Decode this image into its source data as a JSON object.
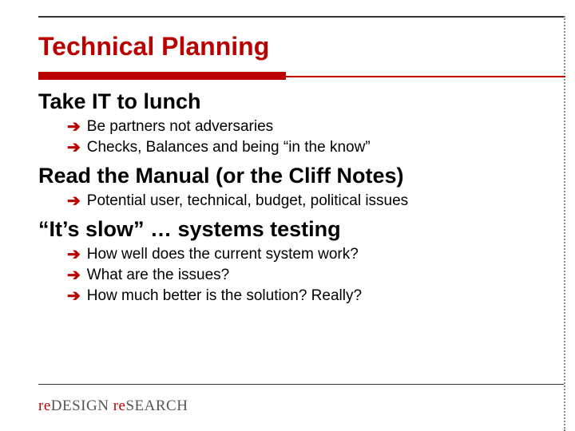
{
  "title": "Technical Planning",
  "sections": [
    {
      "heading": "Take IT to lunch",
      "bullets": [
        "Be partners not adversaries",
        "Checks, Balances and being “in the know”"
      ]
    },
    {
      "heading": "Read the Manual (or the Cliff Notes)",
      "bullets": [
        "Potential user, technical, budget, political issues"
      ]
    },
    {
      "heading": "“It’s slow” … systems testing",
      "bullets": [
        "How well does the current system work?",
        "What are the issues?",
        "How much better is the solution? Really?"
      ]
    }
  ],
  "logo": {
    "re": "re",
    "design": "DESIGN",
    "search": "SEARCH"
  },
  "colors": {
    "accent": "#bb0000",
    "text": "#000000",
    "rule": "#333333",
    "dotted": "#888888",
    "logo_gray": "#555555",
    "background": "#ffffff"
  },
  "arrow_glyph": "➔"
}
